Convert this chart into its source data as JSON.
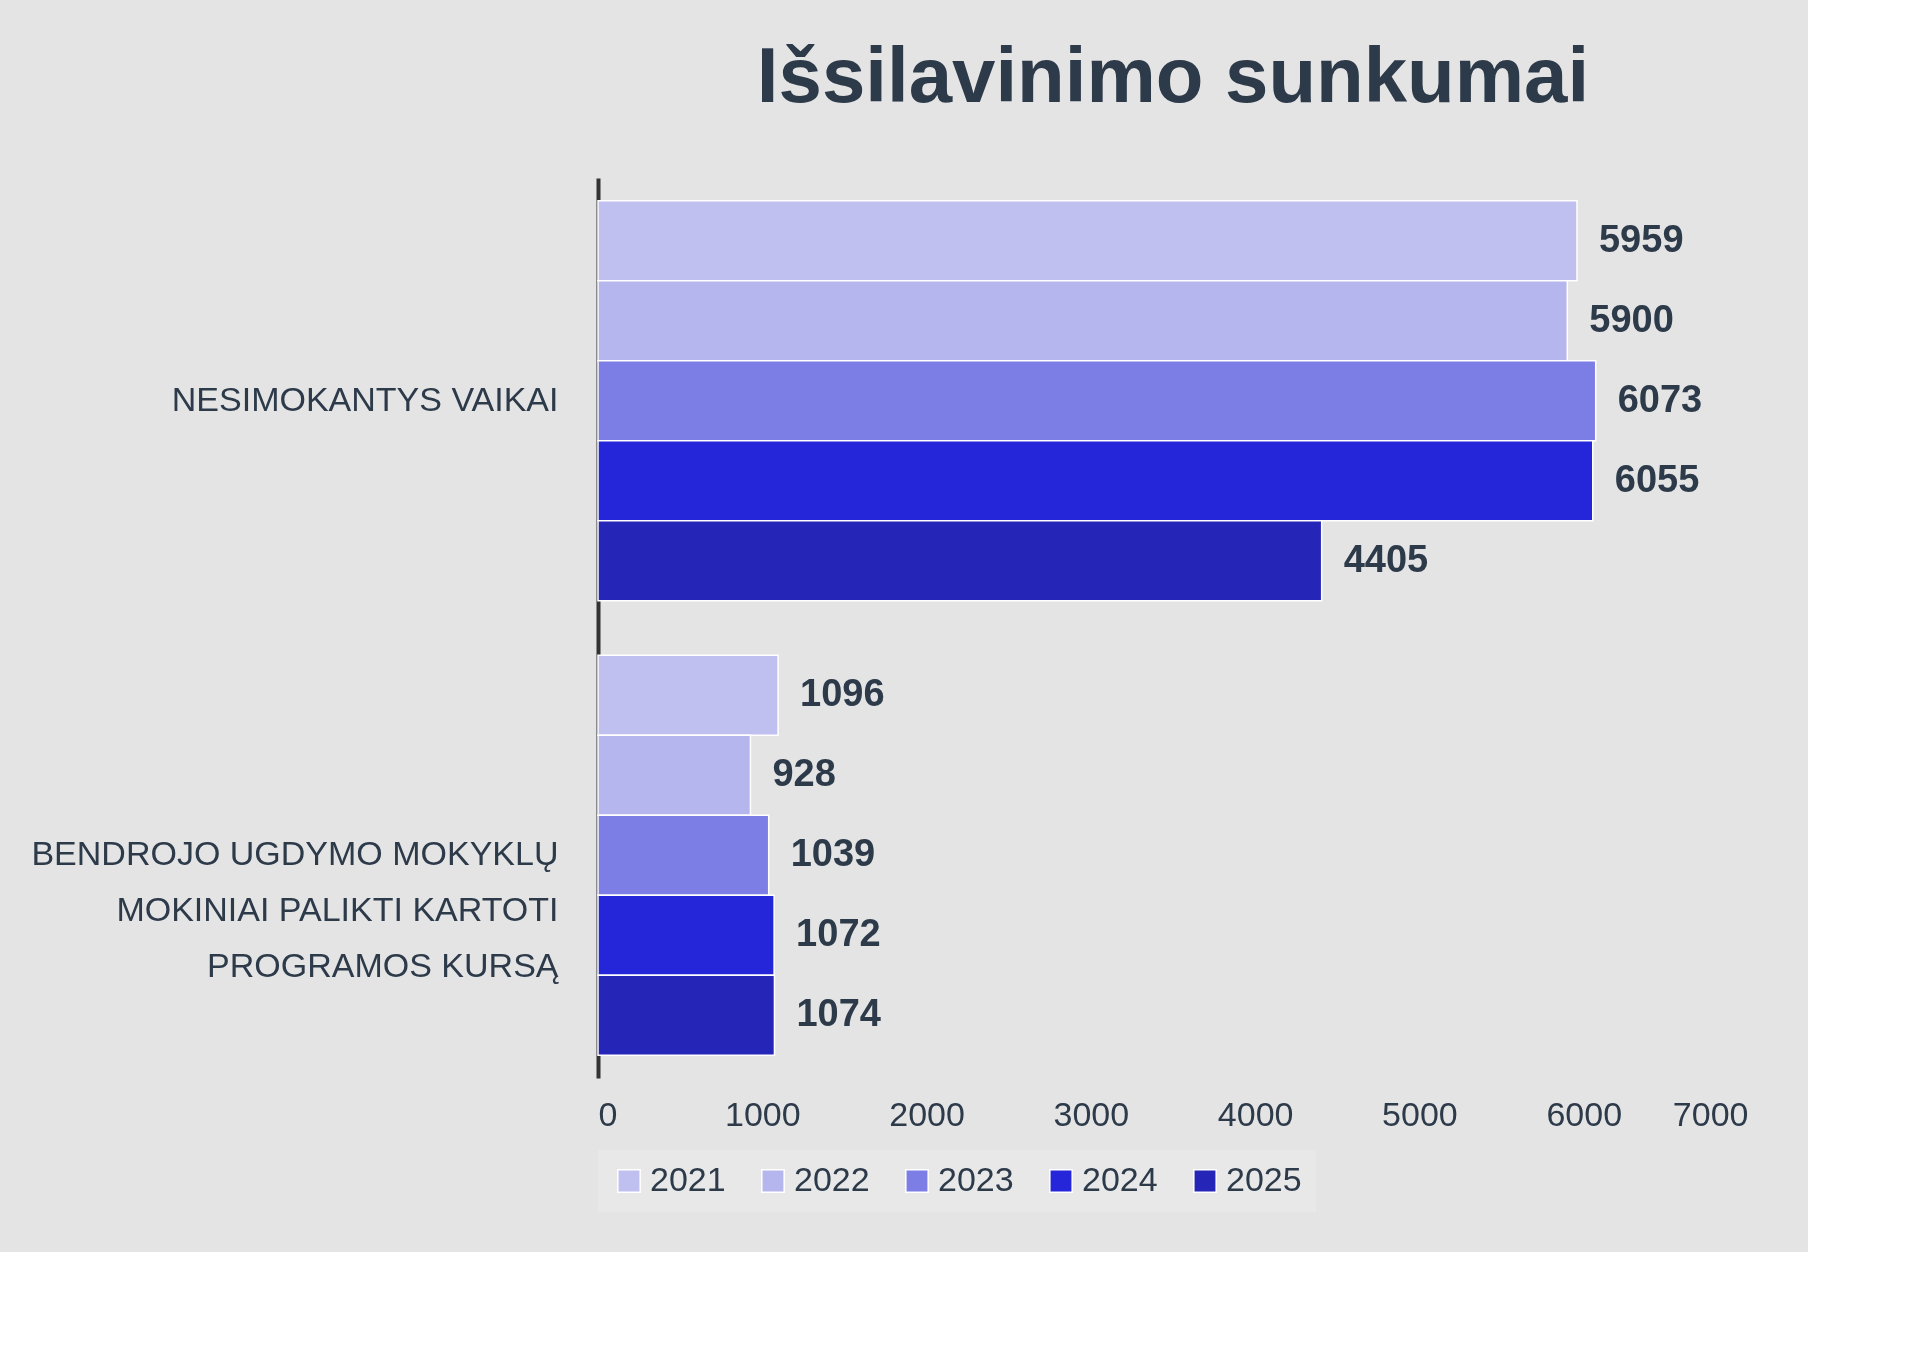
{
  "chart_data": {
    "type": "bar",
    "orientation": "horizontal",
    "title": "Išsilavinimo sunkumai",
    "categories": [
      "NESIMOKANTYS VAIKAI",
      "BENDROJO UGDYMO MOKYKLŲ MOKINIAI PALIKTI KARTOTI PROGRAMOS KURSĄ"
    ],
    "series": [
      {
        "name": "2021",
        "color": "#bfbff0",
        "values": [
          5959,
          1096
        ]
      },
      {
        "name": "2022",
        "color": "#b6b6ef",
        "values": [
          5900,
          928
        ]
      },
      {
        "name": "2023",
        "color": "#7d7de6",
        "values": [
          6073,
          1039
        ]
      },
      {
        "name": "2024",
        "color": "#2525da",
        "values": [
          6055,
          1072
        ]
      },
      {
        "name": "2025",
        "color": "#2525b8",
        "values": [
          4405,
          1074
        ]
      }
    ],
    "xlim": [
      0,
      7000
    ],
    "xticks": [
      0,
      1000,
      2000,
      3000,
      4000,
      5000,
      6000,
      7000
    ],
    "data_labels": true,
    "grid": false,
    "legend": "bottom"
  }
}
